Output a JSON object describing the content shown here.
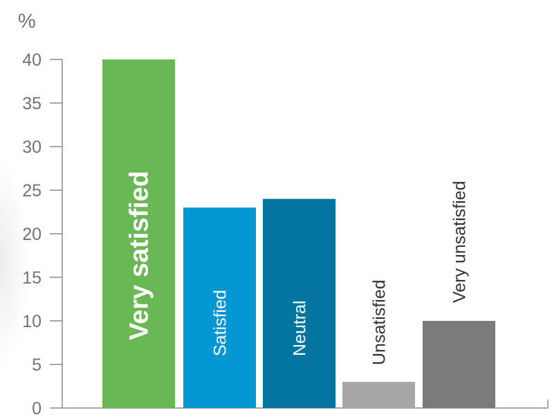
{
  "chart_data": {
    "type": "bar",
    "title": "",
    "xlabel": "",
    "ylabel": "%",
    "ylim": [
      0,
      40
    ],
    "yticks": [
      0,
      5,
      10,
      15,
      20,
      25,
      30,
      35,
      40
    ],
    "grid": false,
    "categories": [
      "Very satisfied",
      "Satisfied",
      "Neutral",
      "Unsatisfied",
      "Very unsatisfied"
    ],
    "values": [
      40,
      23,
      24,
      3,
      10
    ],
    "colors": [
      "#6ab755",
      "#0497d4",
      "#0275a0",
      "#a7a7aa",
      "#7b7b7e"
    ],
    "label_colors": [
      "#ffffff",
      "#ffffff",
      "#ffffff",
      "#333333",
      "#333333"
    ]
  }
}
